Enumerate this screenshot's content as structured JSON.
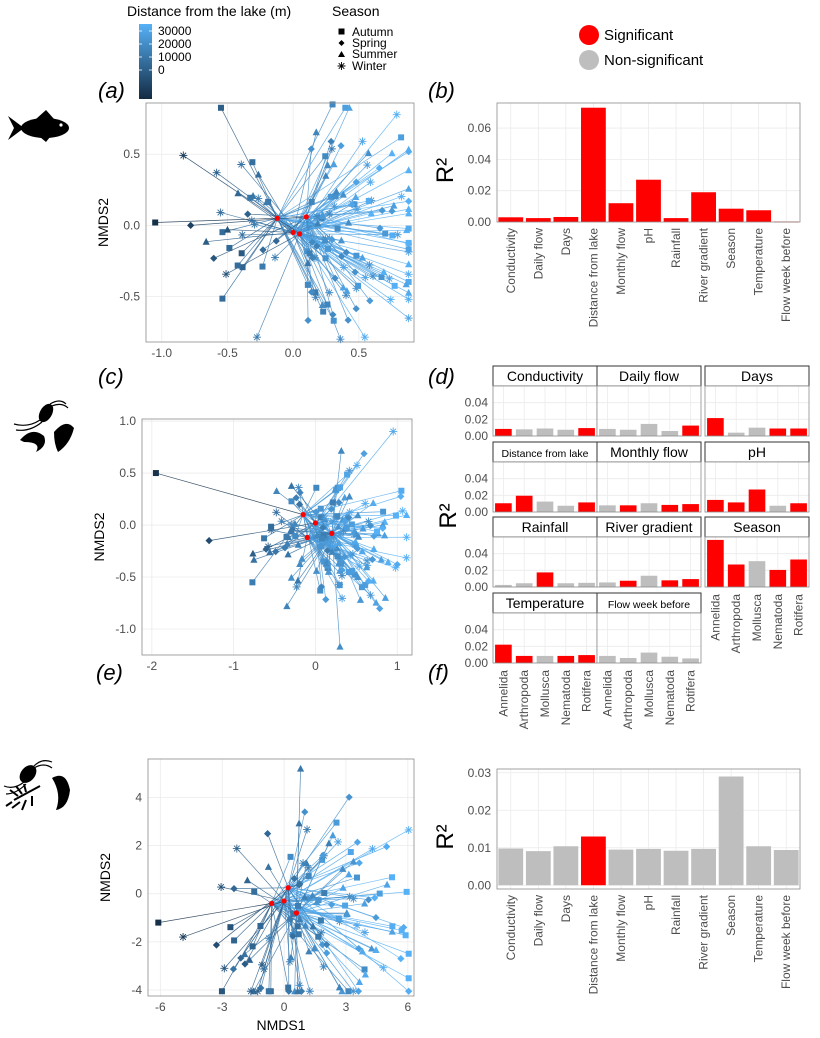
{
  "legend": {
    "distance_title": "Distance from the lake (m)",
    "distance_ticks": [
      "30000",
      "20000",
      "10000",
      "0"
    ],
    "distance_colors": [
      "#132b43",
      "#56b1f7"
    ],
    "season_title": "Season",
    "season_items": [
      {
        "label": "Autumn",
        "shape": "square"
      },
      {
        "label": "Spring",
        "shape": "diamond"
      },
      {
        "label": "Summer",
        "shape": "triangle"
      },
      {
        "label": "Winter",
        "shape": "asterisk"
      }
    ],
    "significance": [
      {
        "label": "Significant",
        "color": "#ff0000"
      },
      {
        "label": "Non-significant",
        "color": "#bebebe"
      }
    ]
  },
  "icons": [
    "fish-icon",
    "macroinvertebrates-icon",
    "microinvertebrates-icon"
  ],
  "chart_data": [
    {
      "panel": "(a)",
      "type": "scatter",
      "subtype": "NMDS ordination with spider lines to season centroids",
      "xlabel": "",
      "ylabel": "NMDS2",
      "xlim": [
        -1.12,
        0.92
      ],
      "ylim": [
        -0.82,
        0.86
      ],
      "xticks": [
        "-1.0",
        "-0.5",
        "0.0",
        "0.5"
      ],
      "xtick_values": [
        -1.0,
        -0.5,
        0.0,
        0.5
      ],
      "yticks": [
        "0.5",
        "0.0",
        "-0.5"
      ],
      "ytick_values": [
        0.5,
        0.0,
        -0.5
      ],
      "centroids": [
        [
          -0.12,
          0.05
        ],
        [
          0.1,
          0.06
        ],
        [
          0.0,
          -0.05
        ],
        [
          0.05,
          -0.06
        ]
      ],
      "n_points": 150,
      "spread": [
        [
          0.45,
          0.25
        ],
        [
          0.25,
          0.2
        ]
      ],
      "seed": 7,
      "extra_points": [
        [
          -1.05,
          0.02
        ],
        [
          -0.78,
          0.0
        ],
        [
          -0.5,
          -0.03
        ],
        [
          0.36,
          -0.8
        ],
        [
          0.3,
          0.85
        ]
      ]
    },
    {
      "panel": "(b)",
      "type": "bar",
      "xlabel": "",
      "ylabel": "R²",
      "categories": [
        "Conductivity",
        "Daily flow",
        "Days",
        "Distance from lake",
        "Monthly flow",
        "pH",
        "Rainfall",
        "River gradient",
        "Season",
        "Temperature",
        "Flow week before"
      ],
      "values": [
        0.003,
        0.0025,
        0.0032,
        0.073,
        0.012,
        0.027,
        0.0025,
        0.019,
        0.0085,
        0.0075,
        0.0003
      ],
      "significant": [
        true,
        true,
        true,
        true,
        true,
        true,
        true,
        true,
        true,
        true,
        true
      ],
      "ylim": [
        0,
        0.076
      ],
      "yticks": [
        "0.00",
        "0.02",
        "0.04",
        "0.06"
      ],
      "ytick_values": [
        0,
        0.02,
        0.04,
        0.06
      ]
    },
    {
      "panel": "(c)",
      "type": "scatter",
      "subtype": "NMDS ordination with spider lines to season centroids",
      "xlabel": "",
      "ylabel": "NMDS2",
      "xlim": [
        -2.12,
        1.18
      ],
      "ylim": [
        -1.25,
        1.02
      ],
      "xticks": [
        "-2",
        "-1",
        "0",
        "1"
      ],
      "xtick_values": [
        -2,
        -1,
        0,
        1
      ],
      "yticks": [
        "1.0",
        "0.5",
        "0.0",
        "-0.5",
        "-1.0"
      ],
      "ytick_values": [
        1.0,
        0.5,
        0.0,
        -0.5,
        -1.0
      ],
      "centroids": [
        [
          -0.15,
          0.1
        ],
        [
          0.0,
          0.02
        ],
        [
          0.2,
          -0.08
        ],
        [
          -0.1,
          -0.12
        ]
      ],
      "n_points": 160,
      "spread": [
        [
          0.45,
          0.22
        ],
        [
          0.3,
          0.2
        ]
      ],
      "seed": 21,
      "extra_points": [
        [
          -1.95,
          0.5
        ],
        [
          -1.3,
          -0.15
        ],
        [
          0.3,
          -1.17
        ],
        [
          0.95,
          0.9
        ],
        [
          1.05,
          0.33
        ],
        [
          1.0,
          -0.38
        ],
        [
          0.55,
          -0.72
        ]
      ]
    },
    {
      "panel": "(d)",
      "type": "bar",
      "subtype": "faceted bars",
      "ylabel": "R²",
      "categories": [
        "Annelida",
        "Arthropoda",
        "Mollusca",
        "Nematoda",
        "Rotifera"
      ],
      "ylim": [
        0,
        0.06
      ],
      "yticks": [
        "0.00",
        "0.02",
        "0.04"
      ],
      "ytick_values": [
        0,
        0.02,
        0.04
      ],
      "facets": [
        {
          "title": "Conductivity",
          "values": [
            0.0085,
            0.008,
            0.009,
            0.0075,
            0.0095
          ],
          "significant": [
            true,
            false,
            false,
            false,
            true
          ]
        },
        {
          "title": "Daily flow",
          "values": [
            0.0085,
            0.0075,
            0.0145,
            0.006,
            0.0125
          ],
          "significant": [
            false,
            false,
            false,
            false,
            true
          ]
        },
        {
          "title": "Days",
          "values": [
            0.0215,
            0.004,
            0.01,
            0.009,
            0.009
          ],
          "significant": [
            true,
            false,
            false,
            true,
            true
          ]
        },
        {
          "title": "Distance from lake",
          "values": [
            0.0105,
            0.0195,
            0.0125,
            0.0075,
            0.0115
          ],
          "significant": [
            true,
            true,
            false,
            false,
            true
          ]
        },
        {
          "title": "Monthly flow",
          "values": [
            0.008,
            0.008,
            0.0105,
            0.0085,
            0.0095
          ],
          "significant": [
            false,
            true,
            false,
            true,
            true
          ]
        },
        {
          "title": "pH",
          "values": [
            0.0145,
            0.0115,
            0.027,
            0.0075,
            0.0105
          ],
          "significant": [
            true,
            true,
            true,
            false,
            true
          ]
        },
        {
          "title": "Rainfall",
          "values": [
            0.0025,
            0.0045,
            0.0175,
            0.0045,
            0.005
          ],
          "significant": [
            false,
            false,
            true,
            false,
            false
          ]
        },
        {
          "title": "River gradient",
          "values": [
            0.0055,
            0.0075,
            0.0135,
            0.008,
            0.0095
          ],
          "significant": [
            false,
            true,
            false,
            true,
            true
          ]
        },
        {
          "title": "Season",
          "values": [
            0.0565,
            0.027,
            0.031,
            0.0205,
            0.033
          ],
          "significant": [
            true,
            true,
            false,
            true,
            true
          ]
        },
        {
          "title": "Temperature",
          "values": [
            0.022,
            0.0085,
            0.0085,
            0.0085,
            0.0095
          ],
          "significant": [
            true,
            true,
            false,
            true,
            true
          ]
        },
        {
          "title": "Flow week before",
          "values": [
            0.0085,
            0.006,
            0.0125,
            0.0075,
            0.0055
          ],
          "significant": [
            false,
            false,
            false,
            false,
            false
          ]
        }
      ]
    },
    {
      "panel": "(e)",
      "type": "scatter",
      "subtype": "NMDS ordination with spider lines to season centroids",
      "xlabel": "NMDS1",
      "ylabel": "NMDS2",
      "xlim": [
        -6.6,
        6.3
      ],
      "ylim": [
        -4.25,
        5.6
      ],
      "xticks": [
        "-6",
        "-3",
        "0",
        "3",
        "6"
      ],
      "xtick_values": [
        -6,
        -3,
        0,
        3,
        6
      ],
      "yticks": [
        "4",
        "2",
        "0",
        "-2",
        "-4"
      ],
      "ytick_values": [
        4,
        2,
        0,
        -2,
        -4
      ],
      "centroids": [
        [
          -0.6,
          -0.4
        ],
        [
          0.2,
          0.25
        ],
        [
          0.6,
          -0.8
        ],
        [
          0.0,
          -0.3
        ]
      ],
      "n_points": 130,
      "spread": [
        [
          2.4,
          1.6
        ],
        [
          1.5,
          1.7
        ]
      ],
      "seed": 5,
      "extra_points": [
        [
          -6.1,
          -1.2
        ],
        [
          5.8,
          -1.4
        ],
        [
          0.8,
          5.2
        ],
        [
          -4.9,
          -1.8
        ],
        [
          0.2,
          -3.9
        ],
        [
          -0.8,
          2.5
        ]
      ]
    },
    {
      "panel": "(f)",
      "type": "bar",
      "xlabel": "",
      "ylabel": "R²",
      "categories": [
        "Conductivity",
        "Daily flow",
        "Days",
        "Distance from lake",
        "Monthly flow",
        "pH",
        "Rainfall",
        "River gradient",
        "Season",
        "Temperature",
        "Flow week before"
      ],
      "values": [
        0.0098,
        0.0091,
        0.0104,
        0.013,
        0.0095,
        0.0097,
        0.0092,
        0.0097,
        0.029,
        0.0104,
        0.0094
      ],
      "significant": [
        false,
        false,
        false,
        true,
        false,
        false,
        false,
        false,
        false,
        false,
        false
      ],
      "ylim": [
        -0.001,
        0.031
      ],
      "yticks": [
        "0.00",
        "0.01",
        "0.02",
        "0.03"
      ],
      "ytick_values": [
        0,
        0.01,
        0.02,
        0.03
      ]
    }
  ]
}
